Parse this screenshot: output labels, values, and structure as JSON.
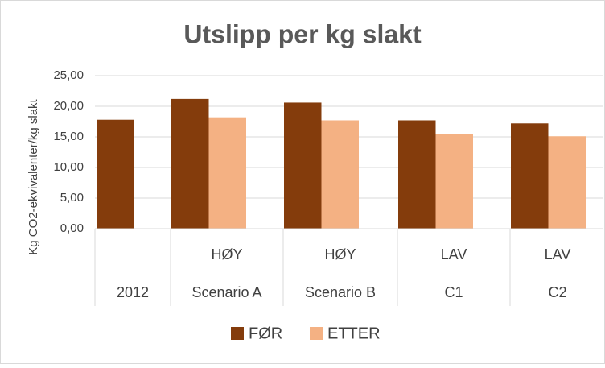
{
  "chart_data": {
    "type": "bar",
    "title": "Utslipp per kg slakt",
    "y_label": "Kg CO2-ekvivalenter/kg slakt",
    "categories": [
      "2012",
      "Scenario A",
      "Scenario B",
      "C1",
      "C2"
    ],
    "subcategories": [
      null,
      "HØY",
      "HØY",
      "LAV",
      "LAV"
    ],
    "series": [
      {
        "name": "FØR",
        "color": "#843c0c",
        "values": [
          17.8,
          21.2,
          20.6,
          17.7,
          17.2
        ]
      },
      {
        "name": "ETTER",
        "color": "#f4b183",
        "values": [
          null,
          18.2,
          17.7,
          15.5,
          15.1
        ]
      }
    ],
    "ylim": [
      0,
      25
    ],
    "yticks": [
      {
        "value": 0,
        "label": "0,00"
      },
      {
        "value": 5,
        "label": "5,00"
      },
      {
        "value": 10,
        "label": "10,00"
      },
      {
        "value": 15,
        "label": "15,00"
      },
      {
        "value": 20,
        "label": "20,00"
      },
      {
        "value": 25,
        "label": "25,00"
      }
    ],
    "grid": true,
    "legend": "bottom"
  }
}
